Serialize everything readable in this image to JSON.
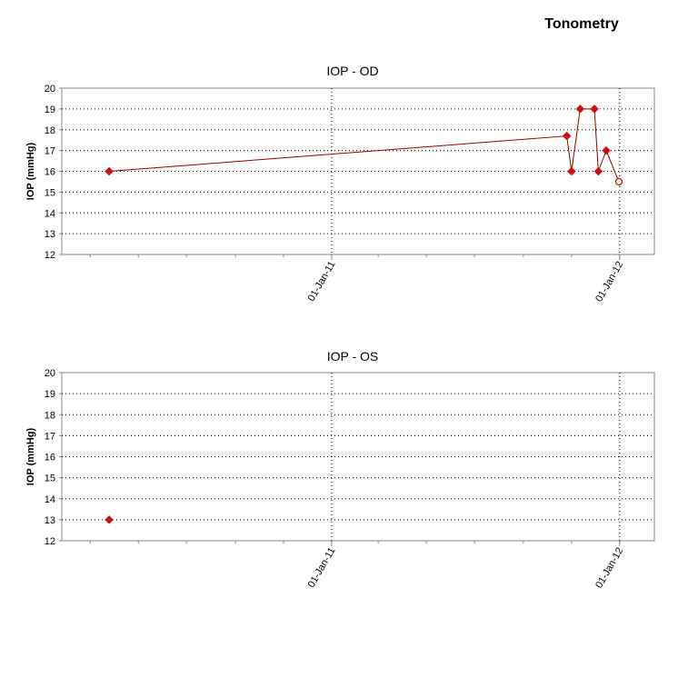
{
  "page": {
    "title": "Tonometry"
  },
  "chart_data": [
    {
      "type": "line",
      "title": "IOP - OD",
      "ylabel": "IOP (mmHg)",
      "xlabel": "",
      "ylim": [
        12,
        20
      ],
      "yticks": [
        12,
        13,
        14,
        15,
        16,
        17,
        18,
        19,
        20
      ],
      "xlim": [
        "2010-01-24",
        "2012-02-14"
      ],
      "xticks": [
        "01-Jan-11",
        "01-Jan-12"
      ],
      "xtick_dates": [
        "2011-01-01",
        "2012-01-01"
      ],
      "grid": true,
      "series": [
        {
          "color": "#cc1111",
          "line_color": "#990000",
          "points": [
            {
              "x": "2010-03-25",
              "y": 16
            },
            {
              "x": "2011-10-26",
              "y": 17.7
            },
            {
              "x": "2011-11-01",
              "y": 16
            },
            {
              "x": "2011-11-12",
              "y": 19
            },
            {
              "x": "2011-11-30",
              "y": 19
            },
            {
              "x": "2011-12-05",
              "y": 16
            },
            {
              "x": "2011-12-15",
              "y": 17
            },
            {
              "x": "2011-12-31",
              "y": 15.5,
              "marker": "hollow-circle"
            }
          ]
        }
      ]
    },
    {
      "type": "scatter",
      "title": "IOP - OS",
      "ylabel": "IOP (mmHg)",
      "xlabel": "",
      "ylim": [
        12,
        20
      ],
      "yticks": [
        12,
        13,
        14,
        15,
        16,
        17,
        18,
        19,
        20
      ],
      "xlim": [
        "2010-01-24",
        "2012-02-14"
      ],
      "xticks": [
        "01-Jan-11",
        "01-Jan-12"
      ],
      "xtick_dates": [
        "2011-01-01",
        "2012-01-01"
      ],
      "grid": true,
      "series": [
        {
          "color": "#cc1111",
          "line_color": "#990000",
          "points": [
            {
              "x": "2010-03-25",
              "y": 13
            }
          ]
        }
      ]
    }
  ]
}
